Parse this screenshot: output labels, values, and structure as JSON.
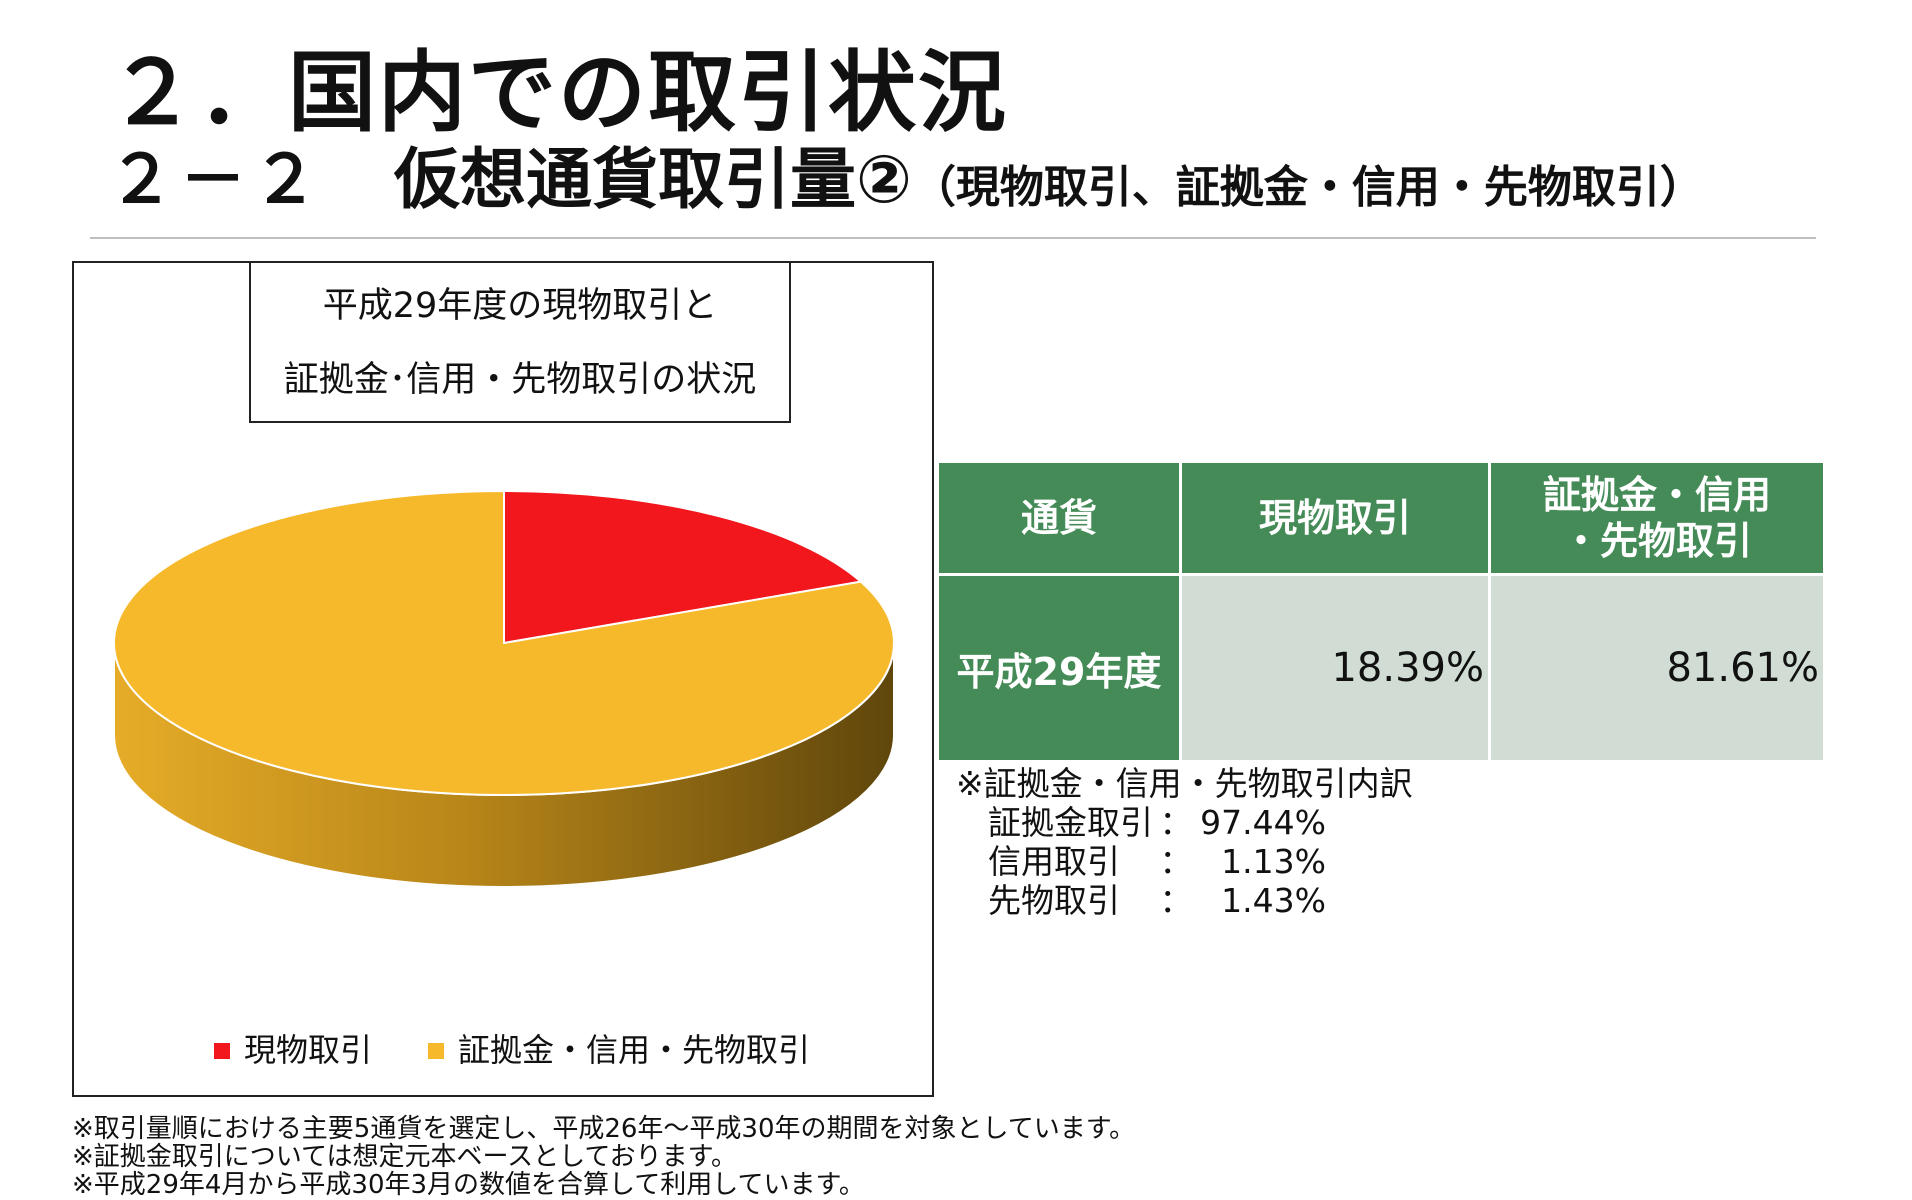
{
  "page": {
    "title_main": "２．国内での取引状況",
    "title_sub_number": "２－２",
    "title_sub_text": "仮想通貨取引量②",
    "title_sub_paren": "（現物取引、証拠金・信用・先物取引）"
  },
  "chart_data": {
    "type": "pie",
    "title": [
      "平成29年度の現物取引と",
      "証拠金･信用・先物取引の状況"
    ],
    "categories": [
      "現物取引",
      "証拠金・信用・先物取引"
    ],
    "values": [
      18.39,
      81.61
    ],
    "colors": [
      "#f2161d",
      "#f7b92c"
    ],
    "legend_position": "bottom"
  },
  "table": {
    "headers": [
      "通貨",
      "現物取引",
      "証拠金・信用",
      "・先物取引"
    ],
    "row_label": "平成29年度",
    "values": [
      "18.39%",
      "81.61%"
    ]
  },
  "breakdown": {
    "heading": "※証拠金・信用・先物取引内訳",
    "rows": [
      {
        "label": "証拠金取引",
        "colon": "：",
        "value": "97.44%"
      },
      {
        "label": "信用取引",
        "colon": "：",
        "value": "1.13%"
      },
      {
        "label": "先物取引",
        "colon": "：",
        "value": "1.43%"
      }
    ]
  },
  "notes": [
    "※取引量順における主要5通貨を選定し、平成26年～平成30年の期間を対象としています。",
    "※証拠金取引については想定元本ベースとしております。",
    "※平成29年4月から平成30年3月の数値を合算して利用しています。"
  ]
}
